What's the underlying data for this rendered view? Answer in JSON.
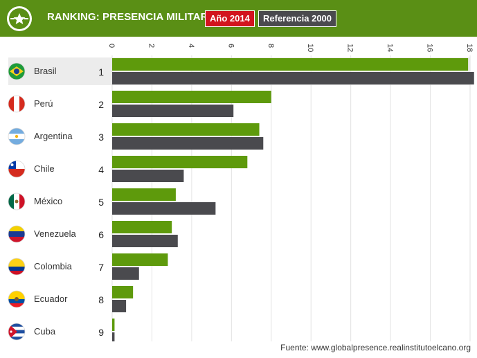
{
  "header": {
    "title": "RANKING: PRESENCIA MILITAR",
    "tag_current": "Año 2014",
    "tag_reference": "Referencia 2000",
    "logo_icon": "star-emblem-icon"
  },
  "source": "Fuente: www.globalpresence.realinstitutoelcano.org",
  "colors": {
    "header_bg": "#5a8f15",
    "series_2014": "#5e9a0c",
    "series_2000": "#4a4a4e",
    "highlight_row": "#ececec",
    "tag_2014_bg": "#d2141e",
    "tag_2000_bg": "#4a4a4e"
  },
  "chart_data": {
    "type": "bar",
    "orientation": "horizontal",
    "x_axis_position": "top",
    "xlim": [
      0,
      18
    ],
    "x_ticks": [
      "0",
      "2",
      "4",
      "6",
      "8",
      "10",
      "12",
      "14",
      "16",
      "18"
    ],
    "grid": true,
    "categories": [
      "Brasil",
      "Perú",
      "Argentina",
      "Chile",
      "México",
      "Venezuela",
      "Colombia",
      "Ecuador",
      "Cuba"
    ],
    "ranks": [
      "1",
      "2",
      "3",
      "4",
      "5",
      "6",
      "7",
      "8",
      "9"
    ],
    "flags": [
      "flag-brazil",
      "flag-peru",
      "flag-argentina",
      "flag-chile",
      "flag-mexico",
      "flag-venezuela",
      "flag-colombia",
      "flag-ecuador",
      "flag-cuba"
    ],
    "highlighted_category": "Brasil",
    "series": [
      {
        "name": "Año 2014",
        "values": [
          17.9,
          8.0,
          7.4,
          6.8,
          3.2,
          3.0,
          2.8,
          1.05,
          0.12
        ]
      },
      {
        "name": "Referencia 2000",
        "values": [
          18.2,
          6.1,
          7.6,
          3.6,
          5.2,
          3.3,
          1.35,
          0.7,
          0.12
        ]
      }
    ]
  }
}
